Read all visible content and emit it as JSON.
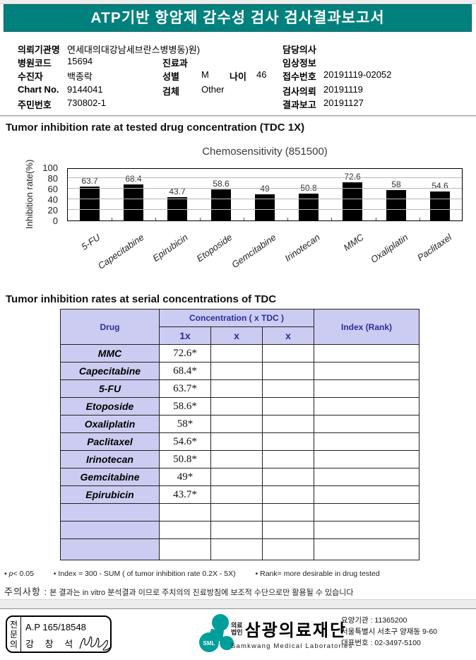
{
  "header": {
    "title": "ATP기반 항암제 감수성 검사 검사결과보고서"
  },
  "patient_info": {
    "org_label": "의뢰기관명",
    "org_value": "연세대의대강남세브란스병병동)원)",
    "hospital_code_label": "병원코드",
    "hospital_code_value": "15694",
    "dept_label": "진료과",
    "dept_value": "",
    "patient_label": "수진자",
    "patient_value": "백종락",
    "sex_label": "성별",
    "sex_value": "M",
    "age_label": "나이",
    "age_value": "46",
    "chart_no_label": "Chart No.",
    "chart_no_value": "9144041",
    "specimen_label": "검체",
    "specimen_value": "Other",
    "resident_id_label": "주민번호",
    "resident_id_value": "730802-1",
    "doctor_label": "담당의사",
    "doctor_value": "",
    "clinical_label": "임상정보",
    "clinical_value": "",
    "receipt_label": "접수번호",
    "receipt_value": "20191119-02052",
    "request_label": "검사의뢰",
    "request_value": "20191119",
    "report_label": "결과보고",
    "report_value": "20191127"
  },
  "sections": {
    "chart_section_title": "Tumor inhibition rate at tested drug concentration (TDC 1X)",
    "table_section_title": "Tumor inhibition rates at serial concentrations of TDC"
  },
  "chart_data": {
    "type": "bar",
    "title": "Chemosensitivity (851500)",
    "categories": [
      "5-FU",
      "Capecitabine",
      "Epirubicin",
      "Etoposide",
      "Gemcitabine",
      "Irinotecan",
      "MMC",
      "Oxaliplatin",
      "Paclitaxel"
    ],
    "values": [
      63.7,
      68.4,
      43.7,
      58.6,
      49,
      50.8,
      72.6,
      58,
      54.6
    ],
    "xlabel": "",
    "ylabel": "Inhibition rate(%)",
    "ylim": [
      0,
      100
    ],
    "yticks": [
      0,
      20,
      40,
      60,
      80,
      100
    ],
    "grid": true,
    "bar_color": "#000000",
    "legend": null
  },
  "table": {
    "headers": {
      "drug": "Drug",
      "concentration": "Concentration ( x TDC )",
      "c1": "1x",
      "c2": "x",
      "c3": "x",
      "index": "Index (Rank)"
    },
    "rows": [
      {
        "drug": "MMC",
        "c1": "72.6*",
        "c2": "",
        "c3": "",
        "index": ""
      },
      {
        "drug": "Capecitabine",
        "c1": "68.4*",
        "c2": "",
        "c3": "",
        "index": ""
      },
      {
        "drug": "5-FU",
        "c1": "63.7*",
        "c2": "",
        "c3": "",
        "index": ""
      },
      {
        "drug": "Etoposide",
        "c1": "58.6*",
        "c2": "",
        "c3": "",
        "index": ""
      },
      {
        "drug": "Oxaliplatin",
        "c1": "58*",
        "c2": "",
        "c3": "",
        "index": ""
      },
      {
        "drug": "Paclitaxel",
        "c1": "54.6*",
        "c2": "",
        "c3": "",
        "index": ""
      },
      {
        "drug": "Irinotecan",
        "c1": "50.8*",
        "c2": "",
        "c3": "",
        "index": ""
      },
      {
        "drug": "Gemcitabine",
        "c1": "49*",
        "c2": "",
        "c3": "",
        "index": ""
      },
      {
        "drug": "Epirubicin",
        "c1": "43.7*",
        "c2": "",
        "c3": "",
        "index": ""
      }
    ],
    "empty_rows": 3
  },
  "footnotes": {
    "bullet": "•",
    "p_italic": "p",
    "p_rest": "< 0.05",
    "index_note": "Index = 300 - SUM ( of tumor inhibition rate 0.2X  -  5X)",
    "rank_note": "Rank= more desirable in drug tested"
  },
  "caution": {
    "label": "주의사항 :",
    "text": "본 결과는 in vitro 분석결과 이므로 주치의의 진료방침에 보조적 수단으로만 활용될 수 있습니다"
  },
  "footer": {
    "stamp": {
      "role": "전문의",
      "license": "A.P 165/18548",
      "name": "강 창 석"
    },
    "logo": {
      "mark_text": "SML",
      "org_type_line1": "의료",
      "org_type_line2": "법인",
      "org_name": "삼광의료재단",
      "org_name_en": "Samkwang Medical Laboratories"
    },
    "contact": {
      "line1": "요양기관 : 11365200",
      "line2": "서울특별시 서초구 양재동 9-60",
      "line3": "대표번호 : 02-3497-5100"
    }
  },
  "colors": {
    "header_teal": "#00817d",
    "table_header_bg": "#ccccf2",
    "table_header_text": "#2d2d99",
    "logo_teal": "#009e9a",
    "bar_black": "#000000"
  }
}
